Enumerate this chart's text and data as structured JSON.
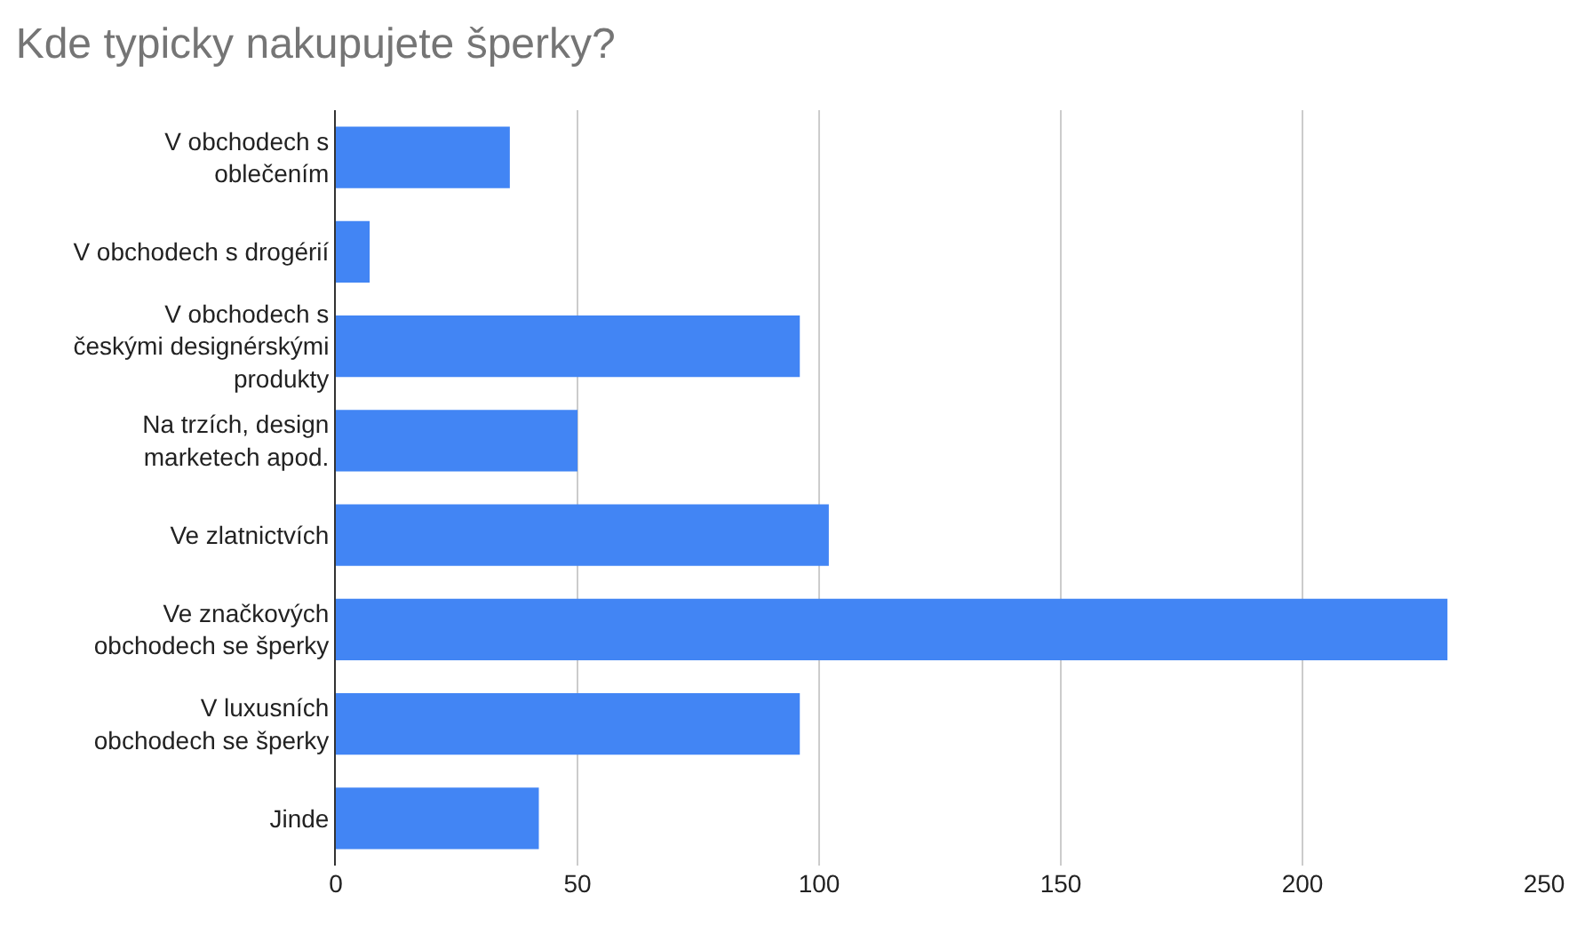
{
  "chart_data": {
    "type": "bar",
    "orientation": "horizontal",
    "title": "Kde typicky nakupujete šperky?",
    "categories": [
      "V obchodech s\noblečením",
      "V obchodech s drogérií",
      "V obchodech s\nčeskými designérskými\nprodukty",
      "Na trzích, design\nmarketech apod.",
      "Ve zlatnictvích",
      "Ve značkových\nobchodech se šperky",
      "V luxusních\nobchodech se šperky",
      "Jinde"
    ],
    "values": [
      36,
      7,
      96,
      50,
      102,
      230,
      96,
      42
    ],
    "color": "#4285f4",
    "xlim": [
      0,
      250
    ],
    "xticks": [
      0,
      50,
      100,
      150,
      200,
      250
    ],
    "grid": "x"
  }
}
